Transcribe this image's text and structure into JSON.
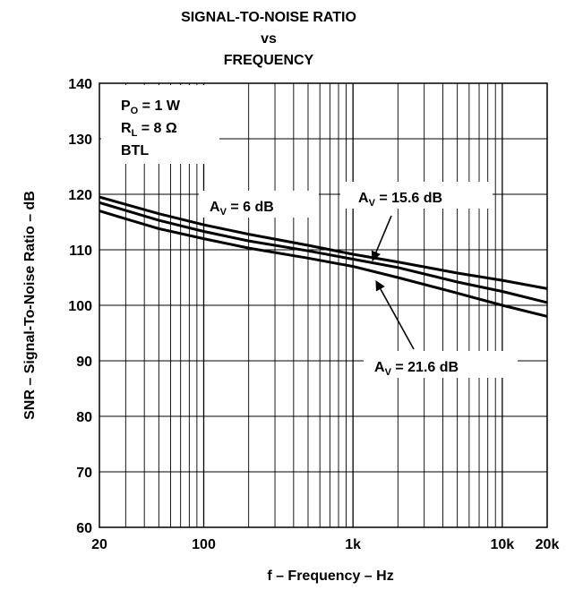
{
  "chart_data": {
    "type": "line",
    "title_lines": [
      "SIGNAL-TO-NOISE RATIO",
      "vs",
      "FREQUENCY"
    ],
    "xlabel": "f – Frequency – Hz",
    "ylabel": "SNR – Signal-To-Noise Ratio – dB",
    "x_scale": "log",
    "xlim": [
      20,
      20000
    ],
    "ylim": [
      60,
      140
    ],
    "x_ticks": [
      {
        "value": 20,
        "label": "20"
      },
      {
        "value": 100,
        "label": "100"
      },
      {
        "value": 1000,
        "label": "1k"
      },
      {
        "value": 10000,
        "label": "10k"
      },
      {
        "value": 20000,
        "label": "20k"
      }
    ],
    "y_ticks": [
      {
        "value": 60,
        "label": "60"
      },
      {
        "value": 70,
        "label": "70"
      },
      {
        "value": 80,
        "label": "80"
      },
      {
        "value": 90,
        "label": "90"
      },
      {
        "value": 100,
        "label": "100"
      },
      {
        "value": 110,
        "label": "110"
      },
      {
        "value": 120,
        "label": "120"
      },
      {
        "value": 130,
        "label": "130"
      },
      {
        "value": 140,
        "label": "140"
      }
    ],
    "grid": true,
    "conditions": [
      {
        "main": "P",
        "sub": "O",
        "rest": " = 1 W"
      },
      {
        "main": "R",
        "sub": "L",
        "rest": " = 8 Ω"
      },
      {
        "main": "BTL",
        "sub": "",
        "rest": ""
      }
    ],
    "series": [
      {
        "label_main": "A",
        "label_sub": "V",
        "label_rest": " = 6 dB",
        "x": [
          20,
          50,
          100,
          200,
          500,
          1000,
          2000,
          5000,
          10000,
          20000
        ],
        "y": [
          119.5,
          116.5,
          114.5,
          112.8,
          110.8,
          109.2,
          107.8,
          105.8,
          104.5,
          103.0
        ]
      },
      {
        "label_main": "A",
        "label_sub": "V",
        "label_rest": " = 15.6 dB",
        "x": [
          20,
          50,
          100,
          200,
          500,
          1000,
          2000,
          5000,
          10000,
          20000
        ],
        "y": [
          118.5,
          115.3,
          113.3,
          111.6,
          109.8,
          108.3,
          106.8,
          104.2,
          102.5,
          100.5
        ]
      },
      {
        "label_main": "A",
        "label_sub": "V",
        "label_rest": " = 21.6 dB",
        "x": [
          20,
          50,
          100,
          200,
          500,
          1000,
          2000,
          5000,
          10000,
          20000
        ],
        "y": [
          117.0,
          113.8,
          112.0,
          110.3,
          108.5,
          107.0,
          105.0,
          102.2,
          100.0,
          98.0
        ]
      }
    ]
  }
}
